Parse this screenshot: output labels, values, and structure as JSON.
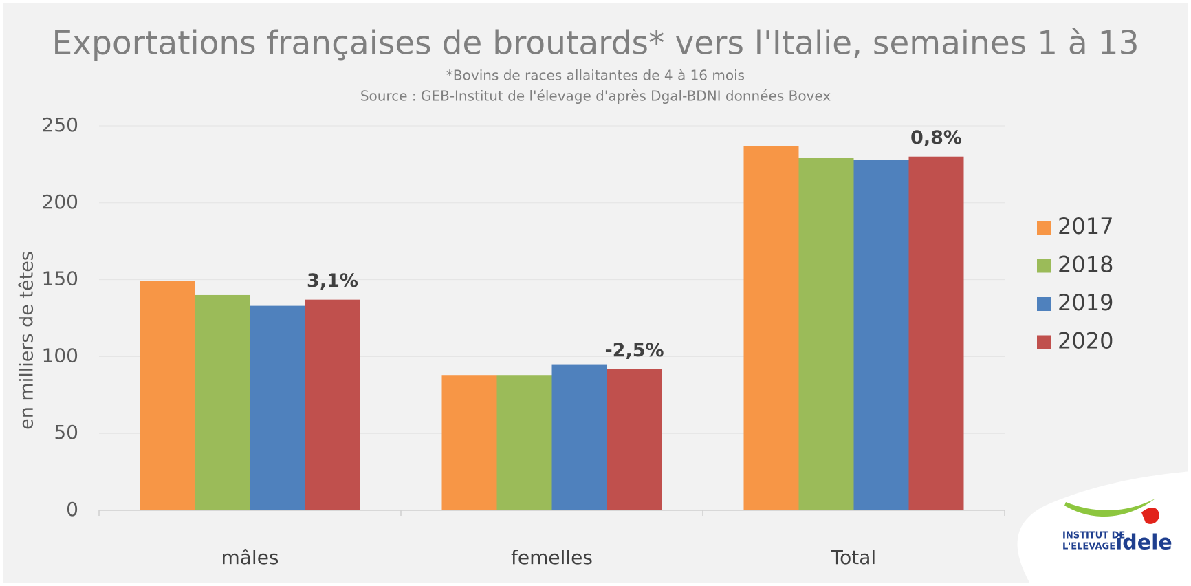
{
  "chart_data": {
    "type": "bar",
    "title": "Exportations françaises de broutards* vers l'Italie, semaines 1 à 13",
    "subtitle": "*Bovins de races allaitantes de 4 à 16 mois",
    "source": "Source : GEB-Institut de l'élevage d'après Dgal-BDNI données Bovex",
    "y_label": "en milliers de têtes",
    "categories": [
      "mâles",
      "femelles",
      "Total"
    ],
    "series": [
      {
        "name": "2017",
        "color": "#f79646",
        "values": [
          149,
          88,
          237
        ]
      },
      {
        "name": "2018",
        "color": "#9bbb59",
        "values": [
          140,
          88,
          229
        ]
      },
      {
        "name": "2019",
        "color": "#4f81bd",
        "values": [
          133,
          95,
          228
        ]
      },
      {
        "name": "2020",
        "color": "#c0504d",
        "values": [
          137,
          92,
          230
        ],
        "annotations": [
          "3,1%",
          "-2,5%",
          "0,8%"
        ]
      }
    ],
    "ylim": [
      0,
      250
    ],
    "yticks": [
      0,
      50,
      100,
      150,
      200,
      250
    ],
    "grid": true,
    "legend": "right"
  },
  "logo": {
    "line1": "INSTITUT DE",
    "line2": "L'ELEVAGE",
    "brand": "idele"
  }
}
